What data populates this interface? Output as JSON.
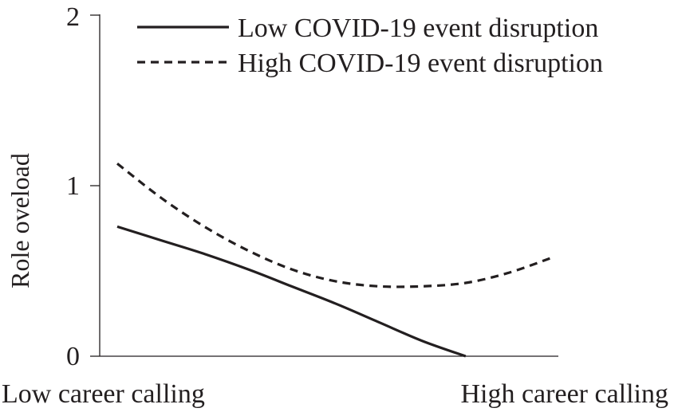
{
  "chart_data": {
    "type": "line",
    "title": "",
    "xlabel": "",
    "ylabel": "Role oveload",
    "x": [
      0,
      0.1,
      0.2,
      0.3,
      0.4,
      0.5,
      0.6,
      0.7,
      0.8,
      0.9,
      1.0
    ],
    "x_tick_labels": [
      "Low career calling",
      "High career calling"
    ],
    "y_ticks": [
      "0",
      "1",
      "2"
    ],
    "ylim": [
      0,
      2
    ],
    "grid": false,
    "legend_position": "top-right",
    "series": [
      {
        "name": "Low COVID-19 event disruption",
        "line_style": "solid",
        "color": "#231f20",
        "values": [
          0.76,
          0.68,
          0.6,
          0.51,
          0.41,
          0.31,
          0.2,
          0.09,
          0.0,
          null,
          null
        ]
      },
      {
        "name": "High COVID-19 event disruption",
        "line_style": "dashed",
        "color": "#231f20",
        "values": [
          1.13,
          0.93,
          0.76,
          0.62,
          0.51,
          0.44,
          0.41,
          0.41,
          0.43,
          0.49,
          0.58
        ]
      }
    ]
  }
}
